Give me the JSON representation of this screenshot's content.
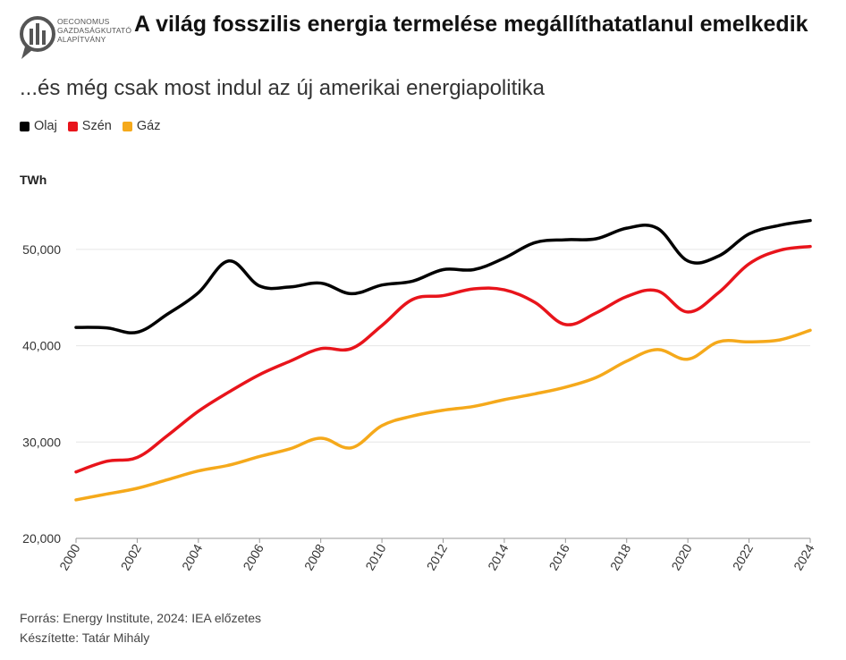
{
  "header": {
    "logo_lines": [
      "OECONOMUS",
      "GAZDASÁGKUTATÓ",
      "ALAPÍTVÁNY"
    ],
    "title": "A világ fosszilis energia termelése megállíthatatlanul emelkedik",
    "subtitle": "...és még csak most indul az új amerikai energiapolitika"
  },
  "legend": [
    {
      "label": "Olaj",
      "color": "#000000"
    },
    {
      "label": "Szén",
      "color": "#e8141b"
    },
    {
      "label": "Gáz",
      "color": "#f5a91b"
    }
  ],
  "footer": {
    "source": "Forrás: Energy Institute, 2024: IEA előzetes",
    "author": "Készítette: Tatár Mihály"
  },
  "chart_data": {
    "type": "line",
    "title": "A világ fosszilis energia termelése megállíthatatlanul emelkedik",
    "subtitle": "...és még csak most indul az új amerikai energiapolitika",
    "xlabel": "",
    "ylabel": "TWh",
    "ylim": [
      20000,
      55000
    ],
    "xlim": [
      2000,
      2024
    ],
    "grid": true,
    "legend_position": "top-left",
    "y_ticks": [
      20000,
      30000,
      40000,
      50000
    ],
    "y_tick_labels": [
      "20,000",
      "30,000",
      "40,000",
      "50,000"
    ],
    "x_ticks": [
      2000,
      2002,
      2004,
      2006,
      2008,
      2010,
      2012,
      2014,
      2016,
      2018,
      2020,
      2022,
      2024
    ],
    "x": [
      2000,
      2001,
      2002,
      2003,
      2004,
      2005,
      2006,
      2007,
      2008,
      2009,
      2010,
      2011,
      2012,
      2013,
      2014,
      2015,
      2016,
      2017,
      2018,
      2019,
      2020,
      2021,
      2022,
      2023,
      2024
    ],
    "series": [
      {
        "name": "Olaj",
        "color": "#000000",
        "values": [
          41900,
          41850,
          41400,
          43300,
          45500,
          48800,
          46200,
          46100,
          46500,
          45400,
          46300,
          46700,
          47900,
          47900,
          49100,
          50700,
          51000,
          51100,
          52200,
          52200,
          48800,
          49300,
          51600,
          52500,
          53000
        ]
      },
      {
        "name": "Szén",
        "color": "#e8141b",
        "values": [
          26900,
          28000,
          28400,
          30700,
          33200,
          35200,
          37000,
          38400,
          39700,
          39700,
          42100,
          44800,
          45200,
          45900,
          45800,
          44500,
          42200,
          43400,
          45100,
          45700,
          43500,
          45500,
          48500,
          49900,
          50300
        ]
      },
      {
        "name": "Gáz",
        "color": "#f5a91b",
        "values": [
          24000,
          24600,
          25200,
          26100,
          27000,
          27600,
          28500,
          29300,
          30400,
          29400,
          31700,
          32700,
          33300,
          33700,
          34400,
          35000,
          35700,
          36700,
          38400,
          39600,
          38600,
          40400,
          40400,
          40600,
          41600
        ]
      }
    ]
  }
}
